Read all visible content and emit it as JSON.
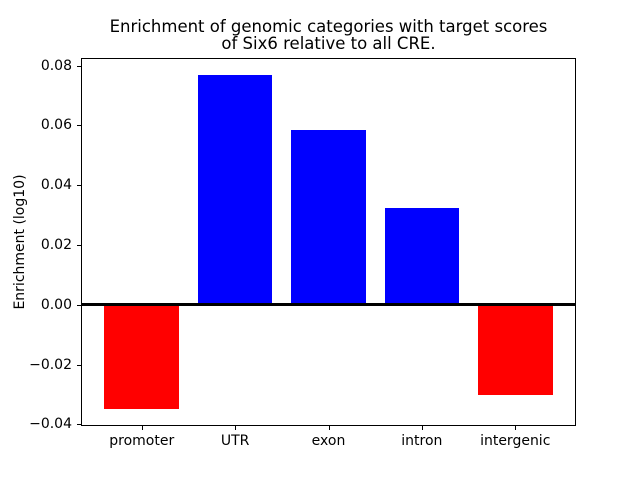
{
  "figure": {
    "background": "#ffffff"
  },
  "chart_data": {
    "type": "bar",
    "title": "Enrichment of genomic categories with target scores\nof Six6 relative to all CRE.",
    "xlabel": "",
    "ylabel": "Enrichment (log10)",
    "categories": [
      "promoter",
      "UTR",
      "exon",
      "intron",
      "intergenic"
    ],
    "values": [
      -0.0349,
      0.0768,
      0.0585,
      0.0323,
      -0.0303
    ],
    "bar_colors": [
      "#ff0000",
      "#0000ff",
      "#0000ff",
      "#0000ff",
      "#ff0000"
    ],
    "positive_color": "#0000ff",
    "negative_color": "#ff0000",
    "bar_width": 0.8,
    "xlim": [
      -0.64,
      4.64
    ],
    "ylim": [
      -0.0402,
      0.0822
    ],
    "yticks": [
      0.08,
      0.06,
      0.04,
      0.02,
      0.0,
      -0.02,
      -0.04
    ],
    "ytick_labels": [
      "0.08",
      "0.06",
      "0.04",
      "0.02",
      "0.00",
      "−0.02",
      "−0.04"
    ],
    "grid": false,
    "legend": null,
    "zero_line": true,
    "axis_color": "#000000"
  }
}
